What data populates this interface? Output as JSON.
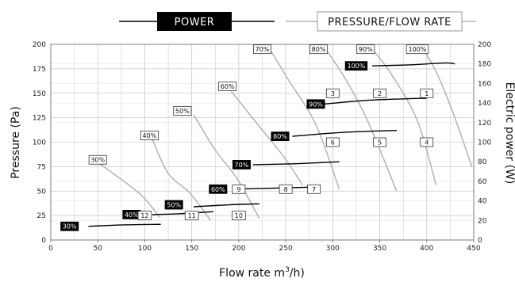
{
  "chart_data": {
    "type": "line",
    "legend": {
      "placement": "top-center",
      "power_label": "POWER",
      "pressure_label": "PRESSURE/FLOW RATE"
    },
    "xlabel": "Flow rate m",
    "xlabel_sup": "3",
    "xlabel_tail": "/h)",
    "ylabel": "Pressure (Pa)",
    "y2label": "Electric power (W)",
    "xlim": [
      0,
      450
    ],
    "ylim": [
      0,
      200
    ],
    "y2lim": [
      0,
      200
    ],
    "x_ticks": [
      "0",
      "50",
      "100",
      "150",
      "200",
      "250",
      "300",
      "350",
      "400",
      "450"
    ],
    "y_ticks": [
      "0",
      "25",
      "50",
      "75",
      "100",
      "125",
      "150",
      "175",
      "200"
    ],
    "y2_ticks": [
      "0",
      "20",
      "40",
      "60",
      "80",
      "100",
      "120",
      "140",
      "160",
      "180",
      "200"
    ],
    "grid": true,
    "colors": {
      "power": "#000000",
      "pressure": "#b3b3b3",
      "grid": "#c8c8c8"
    },
    "pressure_series": [
      {
        "name": "30%",
        "label_pos": [
          50,
          82
        ],
        "points": [
          [
            52,
            78
          ],
          [
            95,
            47
          ],
          [
            116,
            23
          ]
        ]
      },
      {
        "name": "40%",
        "label_pos": [
          105,
          107
        ],
        "points": [
          [
            108,
            103
          ],
          [
            125,
            68
          ],
          [
            148,
            48
          ],
          [
            170,
            20
          ]
        ]
      },
      {
        "name": "50%",
        "label_pos": [
          140,
          132
        ],
        "points": [
          [
            152,
            128
          ],
          [
            175,
            92
          ],
          [
            198,
            63
          ],
          [
            222,
            22
          ]
        ]
      },
      {
        "name": "60%",
        "label_pos": [
          188,
          157
        ],
        "points": [
          [
            192,
            152
          ],
          [
            222,
            116
          ],
          [
            248,
            85
          ],
          [
            268,
            56
          ]
        ]
      },
      {
        "name": "70%",
        "label_pos": [
          225,
          195
        ],
        "points": [
          [
            230,
            200
          ],
          [
            252,
            165
          ],
          [
            282,
            118
          ],
          [
            307,
            52
          ]
        ]
      },
      {
        "name": "80%",
        "label_pos": [
          285,
          195
        ],
        "points": [
          [
            289,
            200
          ],
          [
            312,
            167
          ],
          [
            337,
            122
          ],
          [
            368,
            50
          ]
        ]
      },
      {
        "name": "90%",
        "label_pos": [
          335,
          195
        ],
        "points": [
          [
            338,
            200
          ],
          [
            362,
            170
          ],
          [
            390,
            122
          ],
          [
            410,
            56
          ]
        ]
      },
      {
        "name": "100%",
        "label_pos": [
          390,
          195
        ],
        "points": [
          [
            393,
            200
          ],
          [
            410,
            172
          ],
          [
            428,
            130
          ],
          [
            448,
            75
          ]
        ]
      }
    ],
    "power_series": [
      {
        "name": "30%",
        "label_pos": [
          20,
          14
        ],
        "points": [
          [
            40,
            14
          ],
          [
            80,
            15.5
          ],
          [
            117,
            16
          ]
        ]
      },
      {
        "name": "40%",
        "label_pos": [
          86,
          26
        ],
        "points": [
          [
            108,
            26
          ],
          [
            140,
            27
          ],
          [
            173,
            29
          ]
        ]
      },
      {
        "name": "50%",
        "label_pos": [
          131,
          36
        ],
        "points": [
          [
            152,
            34
          ],
          [
            190,
            36
          ],
          [
            222,
            37
          ]
        ]
      },
      {
        "name": "60%",
        "label_pos": [
          178,
          52
        ],
        "points": [
          [
            195,
            52
          ],
          [
            235,
            53
          ],
          [
            277,
            54
          ]
        ]
      },
      {
        "name": "70%",
        "label_pos": [
          203,
          77
        ],
        "points": [
          [
            215,
            77
          ],
          [
            260,
            78
          ],
          [
            307,
            80
          ]
        ]
      },
      {
        "name": "80%",
        "label_pos": [
          244,
          106
        ],
        "points": [
          [
            257,
            106
          ],
          [
            310,
            110
          ],
          [
            368,
            112
          ]
        ]
      },
      {
        "name": "90%",
        "label_pos": [
          282,
          139
        ],
        "points": [
          [
            291,
            139
          ],
          [
            340,
            143
          ],
          [
            400,
            145
          ]
        ]
      },
      {
        "name": "100%",
        "label_pos": [
          325,
          178
        ],
        "points": [
          [
            342,
            178
          ],
          [
            380,
            179
          ],
          [
            420,
            181
          ],
          [
            430,
            180
          ]
        ]
      }
    ],
    "operating_points": [
      {
        "label": "1",
        "x": 400,
        "y": 150
      },
      {
        "label": "2",
        "x": 350,
        "y": 150
      },
      {
        "label": "3",
        "x": 300,
        "y": 150
      },
      {
        "label": "4",
        "x": 400,
        "y": 100
      },
      {
        "label": "5",
        "x": 350,
        "y": 100
      },
      {
        "label": "6",
        "x": 300,
        "y": 100
      },
      {
        "label": "7",
        "x": 280,
        "y": 52
      },
      {
        "label": "8",
        "x": 250,
        "y": 52
      },
      {
        "label": "9",
        "x": 200,
        "y": 52
      },
      {
        "label": "10",
        "x": 200,
        "y": 25
      },
      {
        "label": "11",
        "x": 150,
        "y": 25
      },
      {
        "label": "12",
        "x": 100,
        "y": 25
      }
    ]
  }
}
